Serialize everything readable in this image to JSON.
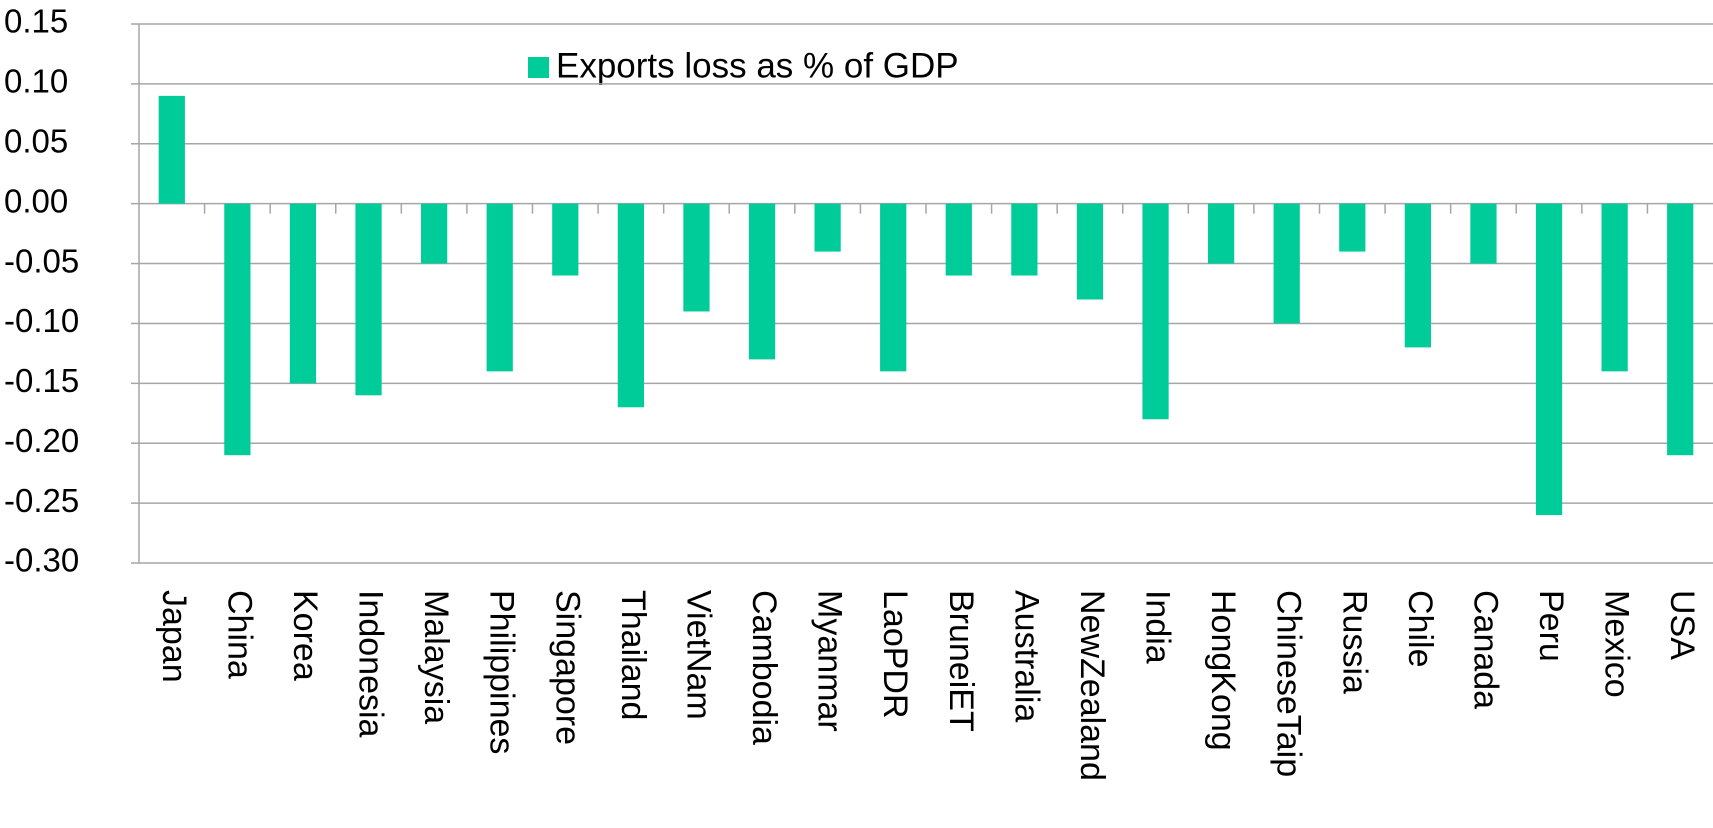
{
  "chart_data": {
    "type": "bar",
    "categories": [
      "Japan",
      "China",
      "Korea",
      "Indonesia",
      "Malaysia",
      "Philippines",
      "Singapore",
      "Thailand",
      "VietNam",
      "Cambodia",
      "Myanmar",
      "LaoPDR",
      "BruneiET",
      "Australia",
      "NewZealand",
      "India",
      "HongKong",
      "ChineseTaip",
      "Russia",
      "Chile",
      "Canada",
      "Peru",
      "Mexico",
      "USA"
    ],
    "series": [
      {
        "name": "Exports loss as % of GDP",
        "color": "#00cc99",
        "values": [
          0.09,
          -0.21,
          -0.15,
          -0.16,
          -0.05,
          -0.14,
          -0.06,
          -0.17,
          -0.09,
          -0.13,
          -0.04,
          -0.14,
          -0.06,
          -0.06,
          -0.08,
          -0.18,
          -0.05,
          -0.1,
          -0.04,
          -0.12,
          -0.05,
          -0.26,
          -0.14,
          -0.21
        ]
      }
    ],
    "ylim": [
      -0.3,
      0.15
    ],
    "yticks": [
      {
        "value": -0.3,
        "label": "-0.30"
      },
      -0.25,
      {
        "value": -0.2,
        "label": "-0.20"
      },
      -0.15,
      {
        "value": -0.1,
        "label": "-0.10"
      },
      -0.05,
      {
        "value": 0,
        "label": "0.00"
      },
      0.05,
      {
        "value": 0.1,
        "label": "0.10"
      },
      0.15
    ],
    "grid": true
  }
}
